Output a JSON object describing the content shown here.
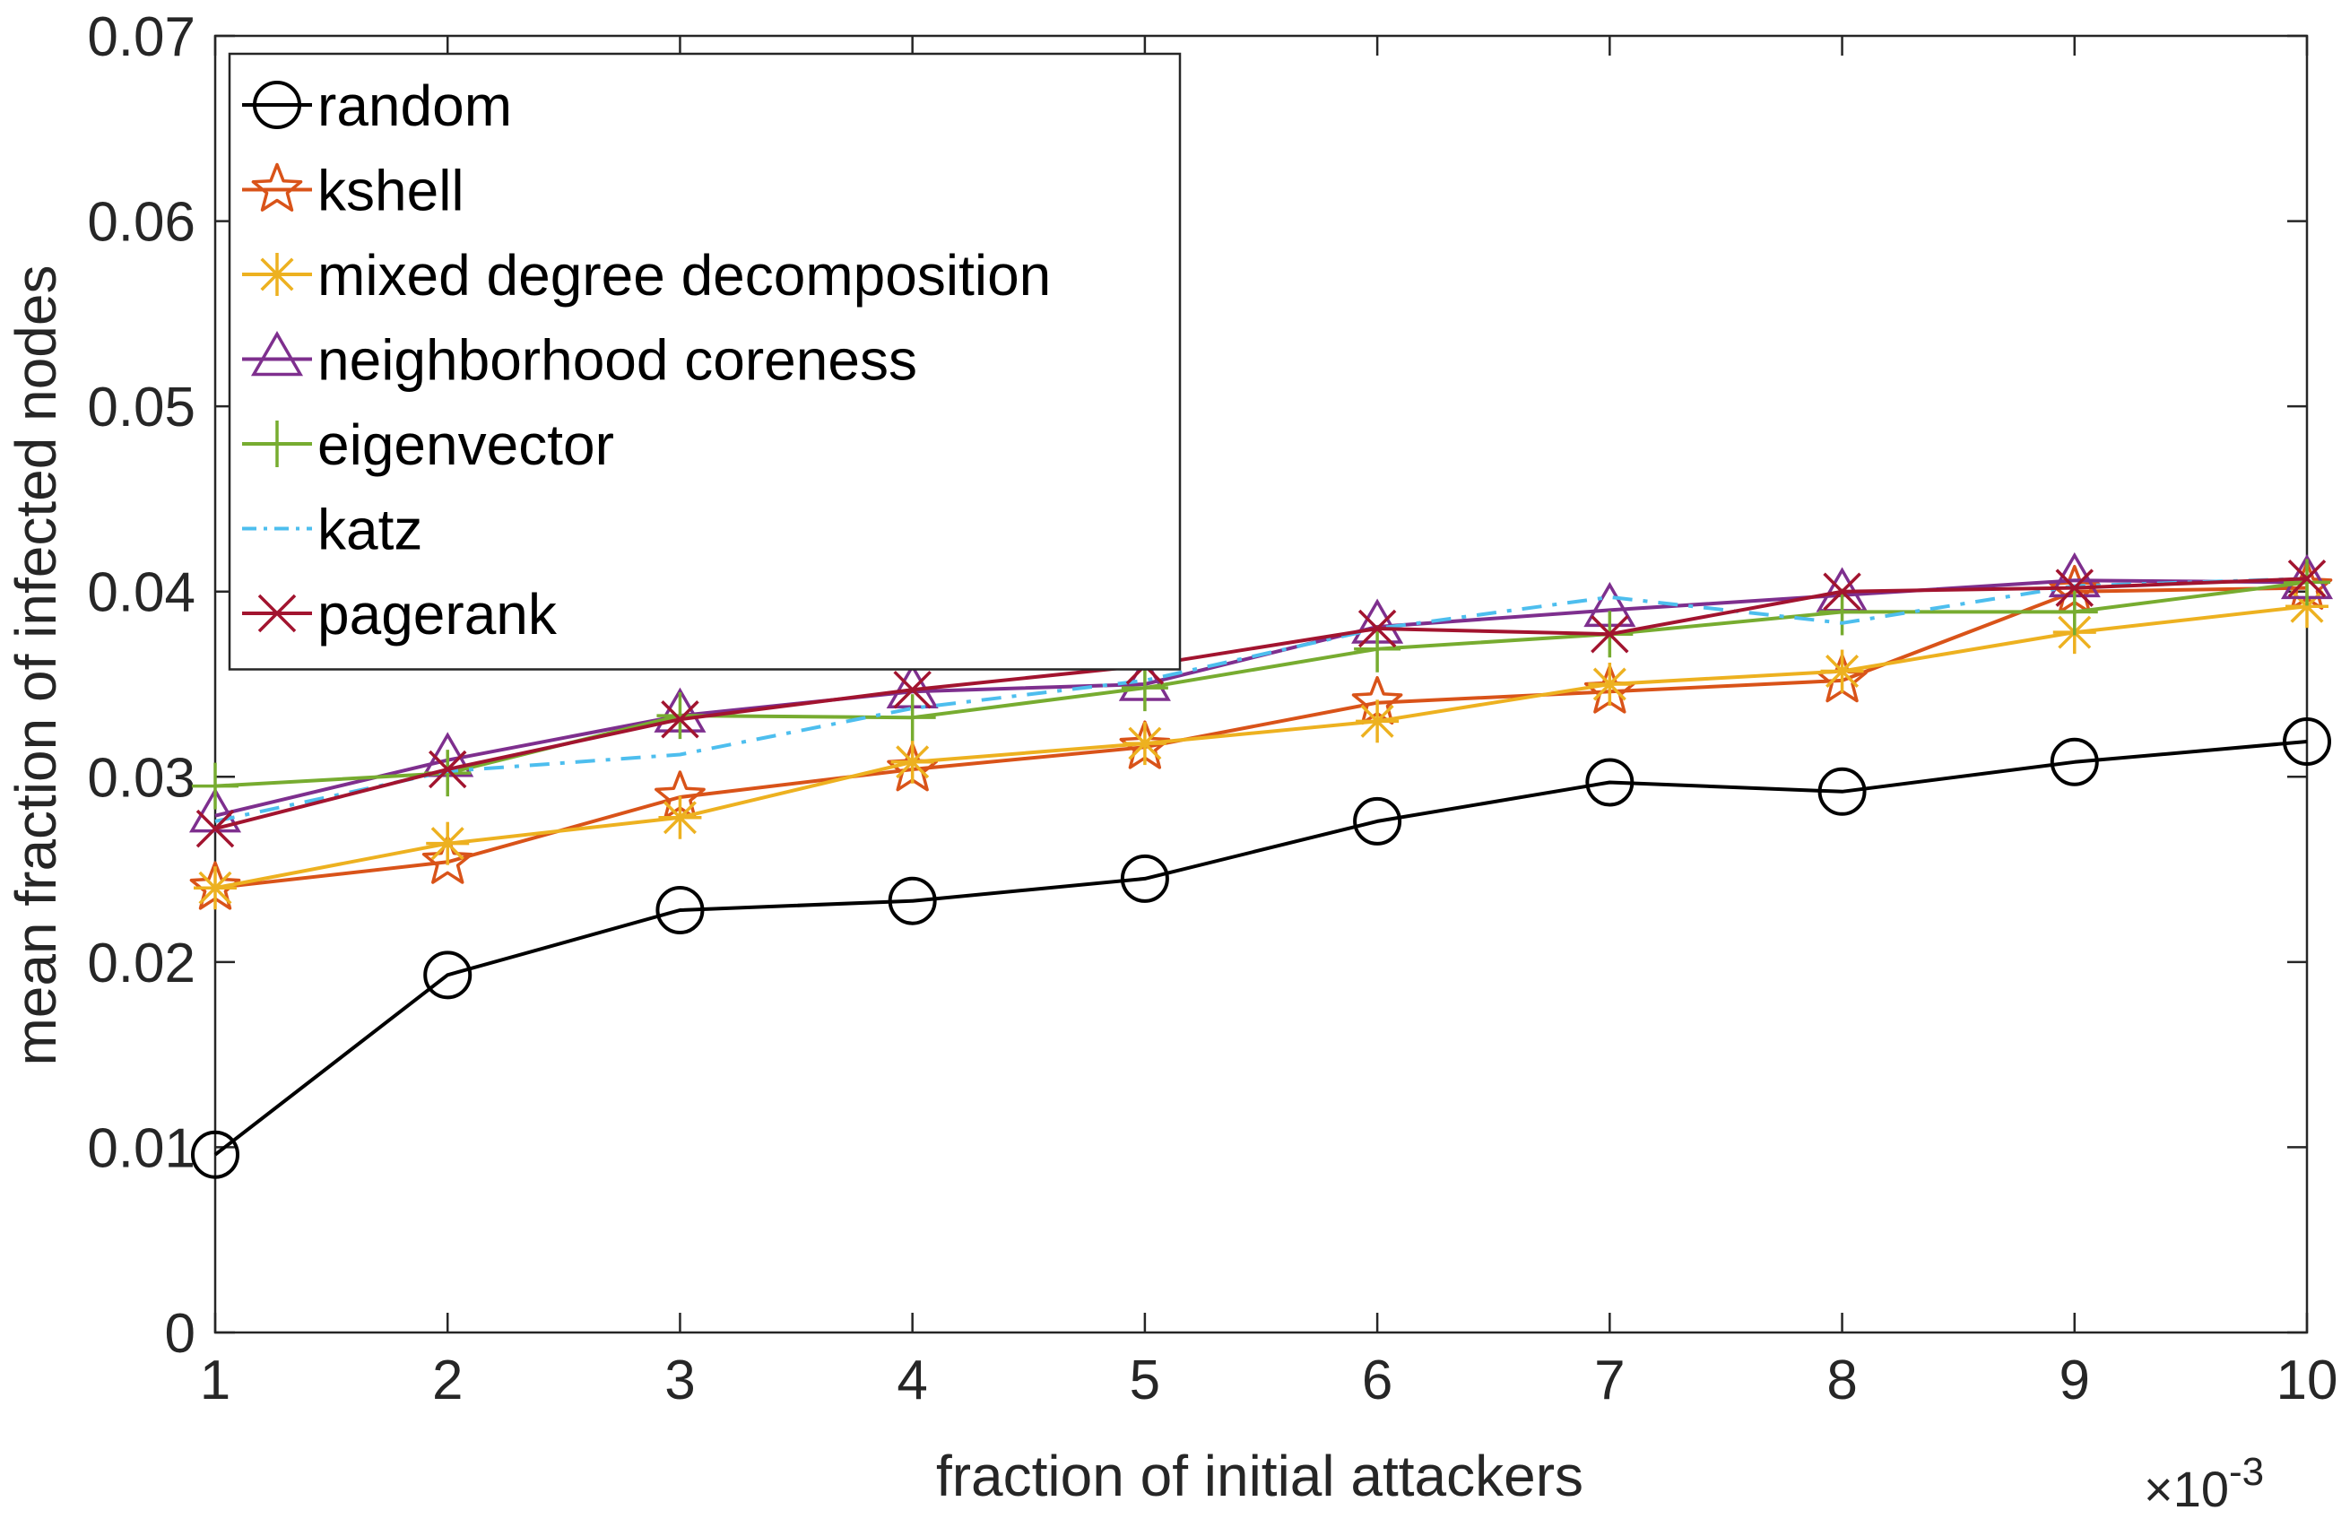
{
  "chart_data": {
    "type": "line",
    "xlabel": "fraction of initial attackers",
    "ylabel": "mean fraction of infected nodes",
    "x_multiplier_base": "×10",
    "x_multiplier_exp": "-3",
    "xlim": [
      1,
      10
    ],
    "ylim": [
      0,
      0.07
    ],
    "x": [
      1,
      2,
      3,
      4,
      5,
      6,
      7,
      8,
      9,
      10
    ],
    "x_tick_labels": [
      "1",
      "2",
      "3",
      "4",
      "5",
      "6",
      "7",
      "8",
      "9",
      "10"
    ],
    "y_ticks": [
      0,
      0.01,
      0.02,
      0.03,
      0.04,
      0.05,
      0.06,
      0.07
    ],
    "y_tick_labels": [
      "0",
      "0.01",
      "0.02",
      "0.03",
      "0.04",
      "0.05",
      "0.06",
      "0.07"
    ],
    "grid": false,
    "legend_position": "top-left",
    "series": [
      {
        "name": "random",
        "color": "#000000",
        "marker": "circle",
        "dash": "solid",
        "values": [
          0.0096,
          0.0193,
          0.0228,
          0.0233,
          0.0245,
          0.0276,
          0.0297,
          0.0292,
          0.0308,
          0.0319
        ]
      },
      {
        "name": "kshell",
        "color": "#D95319",
        "marker": "star",
        "dash": "solid",
        "values": [
          0.024,
          0.0254,
          0.0289,
          0.0304,
          0.0316,
          0.034,
          0.0346,
          0.0352,
          0.04,
          0.0402
        ]
      },
      {
        "name": "mixed degree decomposition",
        "color": "#EDB120",
        "marker": "asterisk",
        "dash": "solid",
        "values": [
          0.024,
          0.0264,
          0.0278,
          0.0308,
          0.0318,
          0.033,
          0.035,
          0.0357,
          0.0378,
          0.0392
        ]
      },
      {
        "name": "neighborhood coreness",
        "color": "#7E2F8E",
        "marker": "triangle",
        "dash": "solid",
        "values": [
          0.0279,
          0.0309,
          0.0333,
          0.0346,
          0.035,
          0.0381,
          0.039,
          0.0398,
          0.0406,
          0.0405
        ]
      },
      {
        "name": "eigenvector",
        "color": "#77AC30",
        "marker": "plus",
        "dash": "solid",
        "values": [
          0.0295,
          0.0302,
          0.0333,
          0.0332,
          0.0348,
          0.0369,
          0.0377,
          0.0389,
          0.0389,
          0.0405
        ]
      },
      {
        "name": "katz",
        "color": "#4DBEEE",
        "marker": "none",
        "dash": "dashdot",
        "values": [
          0.0276,
          0.0303,
          0.0312,
          0.0337,
          0.0352,
          0.038,
          0.0397,
          0.0383,
          0.0403,
          0.0407
        ]
      },
      {
        "name": "pagerank",
        "color": "#A2142F",
        "marker": "x",
        "dash": "solid",
        "values": [
          0.0272,
          0.0304,
          0.0331,
          0.0347,
          0.036,
          0.038,
          0.0377,
          0.04,
          0.0402,
          0.0407
        ]
      }
    ]
  }
}
